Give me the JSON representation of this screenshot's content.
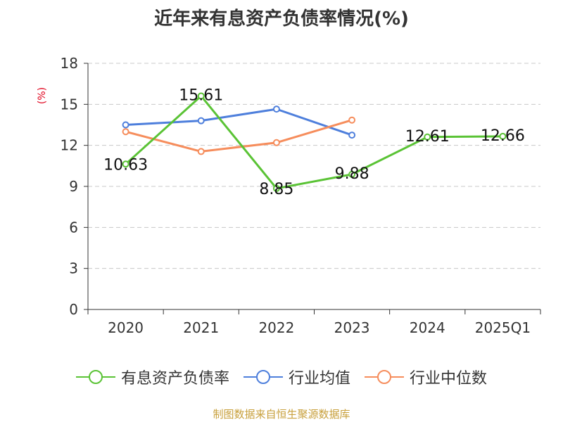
{
  "chart_data": {
    "type": "line",
    "title": "近年来有息资产负债率情况(%)",
    "ylabel": "(%)",
    "xlabel": "",
    "categories": [
      "2020",
      "2021",
      "2022",
      "2023",
      "2024",
      "2025Q1"
    ],
    "ylim": [
      0,
      18
    ],
    "yticks": [
      0,
      3,
      6,
      9,
      12,
      15,
      18
    ],
    "grid": true,
    "legend_position": "bottom",
    "series": [
      {
        "name": "有息资产负债率",
        "color": "#5ac335",
        "values": [
          10.63,
          15.61,
          8.85,
          9.88,
          12.61,
          12.66
        ],
        "labels": [
          "10.63",
          "15.61",
          "8.85",
          "9.88",
          "12.61",
          "12.66"
        ]
      },
      {
        "name": "行业均值",
        "color": "#4e7fdc",
        "values": [
          13.5,
          13.8,
          14.65,
          12.75,
          null,
          null
        ]
      },
      {
        "name": "行业中位数",
        "color": "#f68d5c",
        "values": [
          13.0,
          11.55,
          12.2,
          13.85,
          null,
          null
        ]
      }
    ]
  },
  "footer": "制图数据来自恒生聚源数据库"
}
